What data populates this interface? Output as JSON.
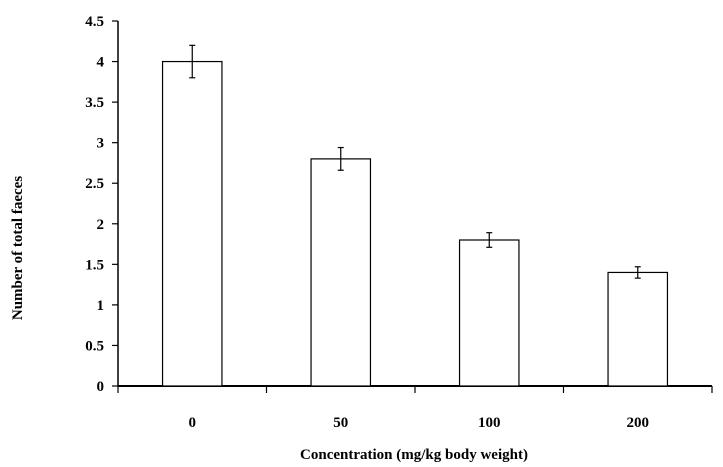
{
  "chart_data": {
    "type": "bar",
    "categories": [
      "0",
      "50",
      "100",
      "200"
    ],
    "values": [
      4.0,
      2.8,
      1.8,
      1.4
    ],
    "error": [
      0.2,
      0.14,
      0.09,
      0.07
    ],
    "xlabel": "Concentration (mg/kg body weight)",
    "ylabel": "Number of total faeces",
    "ylim": [
      0,
      4.5
    ],
    "yticks": [
      "0",
      "0.5",
      "1",
      "1.5",
      "2",
      "2.5",
      "3",
      "3.5",
      "4",
      "4.5"
    ],
    "grid": false,
    "legend": "none",
    "bar_fill": "#ffffff",
    "bar_stroke": "#000000"
  }
}
